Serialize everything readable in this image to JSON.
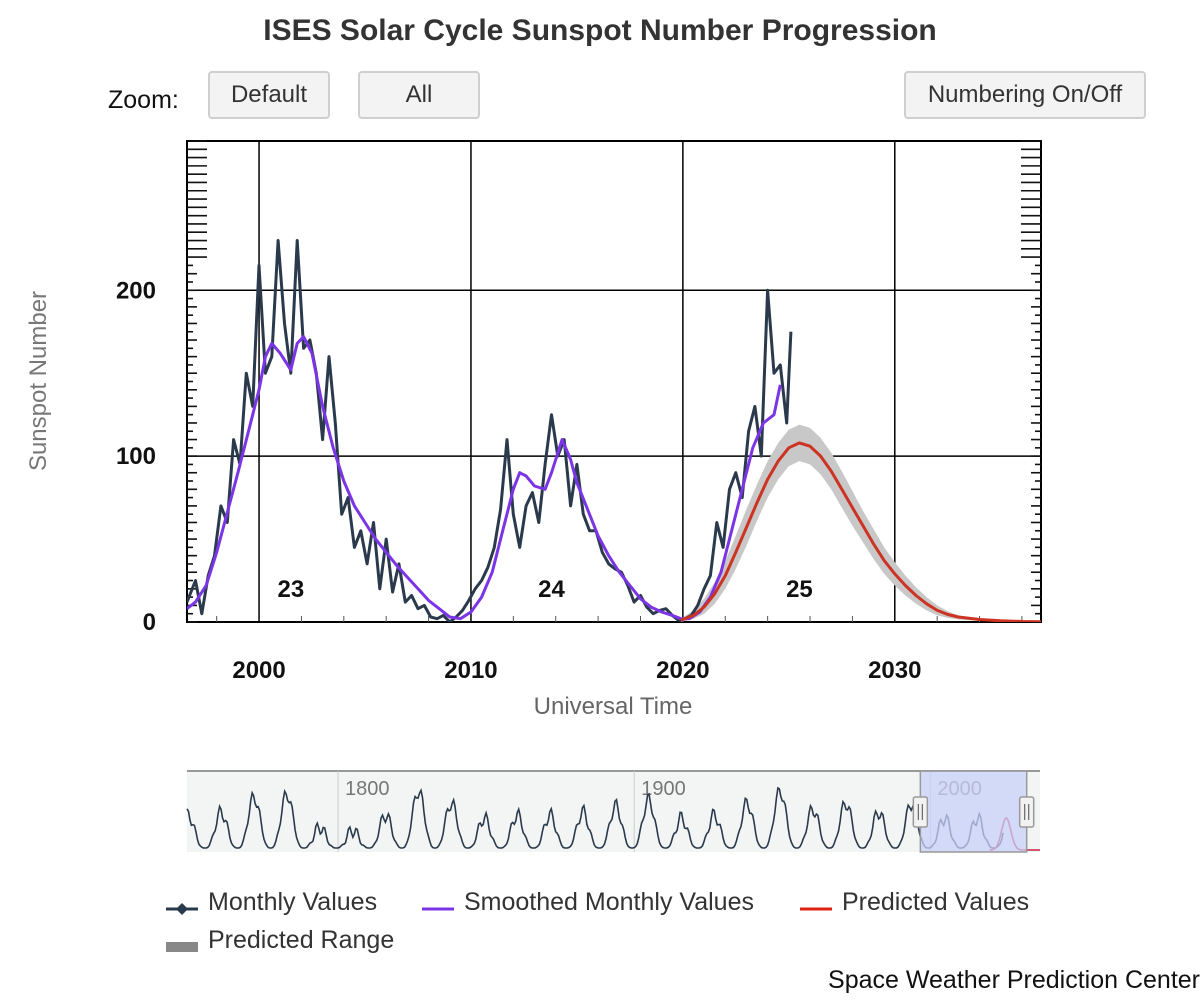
{
  "chart_data": {
    "type": "line",
    "title": "ISES Solar Cycle Sunspot Number Progression",
    "xlabel": "Universal Time",
    "ylabel": "Sunspot Number",
    "xlim": [
      1996.6,
      2036.9
    ],
    "ylim": [
      0,
      290
    ],
    "x_ticks": [
      "2000",
      "2010",
      "2020",
      "2030"
    ],
    "x_tick_values": [
      2000,
      2010,
      2020,
      2030
    ],
    "y_ticks": [
      "0",
      "100",
      "200"
    ],
    "y_tick_values": [
      0,
      100,
      200
    ],
    "grid": true,
    "cycle_labels": [
      {
        "text": "23",
        "x": 2001.5,
        "y": 20
      },
      {
        "text": "24",
        "x": 2013.8,
        "y": 20
      },
      {
        "text": "25",
        "x": 2025.5,
        "y": 20
      }
    ],
    "series": [
      {
        "name": "Monthly Values",
        "color": "#2a3a4c",
        "x": [
          1996.6,
          1997.0,
          1997.3,
          1997.6,
          1997.9,
          1998.2,
          1998.5,
          1998.8,
          1999.1,
          1999.4,
          1999.7,
          2000.0,
          2000.3,
          2000.6,
          2000.9,
          2001.2,
          2001.5,
          2001.8,
          2002.1,
          2002.4,
          2002.7,
          2003.0,
          2003.3,
          2003.6,
          2003.9,
          2004.2,
          2004.5,
          2004.8,
          2005.1,
          2005.4,
          2005.7,
          2006.0,
          2006.3,
          2006.6,
          2006.9,
          2007.2,
          2007.5,
          2007.8,
          2008.1,
          2008.4,
          2008.7,
          2009.0,
          2009.3,
          2009.6,
          2009.9,
          2010.2,
          2010.5,
          2010.8,
          2011.1,
          2011.4,
          2011.7,
          2012.0,
          2012.3,
          2012.6,
          2012.9,
          2013.2,
          2013.5,
          2013.8,
          2014.1,
          2014.4,
          2014.7,
          2015.0,
          2015.3,
          2015.6,
          2015.9,
          2016.2,
          2016.5,
          2016.8,
          2017.1,
          2017.4,
          2017.7,
          2018.0,
          2018.3,
          2018.6,
          2018.9,
          2019.2,
          2019.5,
          2019.8,
          2020.1,
          2020.4,
          2020.7,
          2021.0,
          2021.3,
          2021.6,
          2021.9,
          2022.2,
          2022.5,
          2022.8,
          2023.1,
          2023.4,
          2023.7,
          2024.0,
          2024.3,
          2024.6,
          2024.9,
          2025.1
        ],
        "values": [
          12,
          25,
          5,
          28,
          40,
          70,
          60,
          110,
          95,
          150,
          130,
          215,
          150,
          160,
          230,
          180,
          150,
          230,
          165,
          170,
          150,
          110,
          160,
          120,
          65,
          75,
          45,
          55,
          35,
          60,
          20,
          50,
          18,
          35,
          12,
          16,
          8,
          10,
          3,
          2,
          4,
          0,
          3,
          7,
          13,
          20,
          25,
          33,
          45,
          68,
          110,
          65,
          45,
          70,
          78,
          60,
          95,
          125,
          100,
          110,
          70,
          95,
          65,
          55,
          55,
          42,
          35,
          32,
          30,
          22,
          12,
          16,
          9,
          5,
          7,
          8,
          4,
          1,
          2,
          4,
          10,
          20,
          28,
          60,
          45,
          80,
          90,
          75,
          115,
          130,
          100,
          200,
          150,
          155,
          120,
          175
        ],
        "line_width": 3
      },
      {
        "name": "Smoothed Monthly Values",
        "color": "#7b35e6",
        "x": [
          1996.6,
          1997.0,
          1997.5,
          1998.0,
          1998.5,
          1999.0,
          1999.5,
          2000.0,
          2000.3,
          2000.6,
          2001.0,
          2001.5,
          2001.8,
          2002.1,
          2002.5,
          2003.0,
          2003.5,
          2004.0,
          2004.5,
          2005.0,
          2005.5,
          2006.0,
          2006.5,
          2007.0,
          2007.5,
          2008.0,
          2008.5,
          2009.0,
          2009.5,
          2010.0,
          2010.5,
          2011.0,
          2011.5,
          2012.0,
          2012.3,
          2012.6,
          2013.0,
          2013.5,
          2013.8,
          2014.3,
          2014.7,
          2015.0,
          2015.5,
          2016.0,
          2016.5,
          2017.0,
          2017.5,
          2018.0,
          2018.5,
          2019.0,
          2019.5,
          2019.9,
          2020.3,
          2020.8,
          2021.3,
          2021.8,
          2022.3,
          2022.8,
          2023.3,
          2023.8,
          2024.3,
          2024.6
        ],
        "values": [
          8,
          12,
          22,
          42,
          66,
          90,
          115,
          140,
          160,
          168,
          162,
          152,
          168,
          172,
          162,
          130,
          105,
          85,
          70,
          60,
          50,
          42,
          34,
          27,
          20,
          13,
          8,
          3,
          2,
          6,
          15,
          30,
          55,
          80,
          90,
          88,
          82,
          80,
          90,
          110,
          98,
          84,
          68,
          52,
          40,
          30,
          22,
          14,
          9,
          6,
          4,
          2,
          2,
          6,
          15,
          30,
          55,
          80,
          105,
          120,
          125,
          143
        ],
        "line_width": 3
      },
      {
        "name": "Predicted Values",
        "color": "#cc3322",
        "x": [
          2019.9,
          2020.5,
          2021.0,
          2021.5,
          2022.0,
          2022.5,
          2023.0,
          2023.5,
          2024.0,
          2024.5,
          2025.0,
          2025.5,
          2026.0,
          2026.5,
          2027.0,
          2027.5,
          2028.0,
          2028.5,
          2029.0,
          2029.5,
          2030.0,
          2030.5,
          2031.0,
          2031.5,
          2032.0,
          2032.5,
          2033.0,
          2034.0,
          2035.0,
          2036.0,
          2036.9
        ],
        "values": [
          1,
          4,
          9,
          17,
          28,
          42,
          57,
          72,
          86,
          97,
          105,
          108,
          106,
          100,
          91,
          80,
          69,
          58,
          47,
          37,
          29,
          22,
          16,
          11,
          7,
          4.5,
          3,
          1.5,
          0.7,
          0.3,
          0.2
        ],
        "line_width": 3
      },
      {
        "name": "Predicted Range",
        "color": "#c8c8c8",
        "x": [
          2019.9,
          2020.5,
          2021.0,
          2021.5,
          2022.0,
          2022.5,
          2023.0,
          2023.5,
          2024.0,
          2024.5,
          2025.0,
          2025.5,
          2026.0,
          2026.5,
          2027.0,
          2027.5,
          2028.0,
          2028.5,
          2029.0,
          2029.5,
          2030.0,
          2030.5,
          2031.0,
          2031.5,
          2032.0,
          2032.5,
          2033.0,
          2034.0,
          2035.0,
          2036.0,
          2036.9
        ],
        "upper": [
          2,
          7,
          14,
          24,
          37,
          52,
          68,
          83,
          97,
          108,
          116,
          119,
          117,
          111,
          102,
          91,
          79,
          67,
          56,
          45,
          36,
          28,
          21,
          15,
          10,
          6.5,
          4,
          2,
          1,
          0.5,
          0.3
        ],
        "lower": [
          0,
          2,
          5,
          11,
          20,
          32,
          46,
          61,
          75,
          86,
          94,
          97,
          95,
          89,
          80,
          69,
          58,
          48,
          38,
          29,
          22,
          16,
          11,
          7,
          4,
          2.5,
          1.5,
          0.7,
          0.3,
          0.1,
          0.1
        ]
      }
    ]
  },
  "zoom": {
    "label": "Zoom:",
    "default_label": "Default",
    "all_label": "All"
  },
  "numbering_label": "Numbering On/Off",
  "navigator": {
    "xlim": [
      1749,
      2037
    ],
    "year_labels": [
      "1800",
      "1900",
      "2000"
    ],
    "year_values": [
      1800,
      1900,
      2000
    ],
    "selection": [
      1996.6,
      2036.9
    ],
    "smoothed_color": "#2a3a4c",
    "prediction_color": "#cc2244",
    "selection_fill": "#c8d0f8"
  },
  "legend": {
    "monthly": "Monthly Values",
    "smoothed": "Smoothed Monthly Values",
    "predicted": "Predicted Values",
    "range": "Predicted Range"
  },
  "credit": "Space Weather Prediction Center"
}
